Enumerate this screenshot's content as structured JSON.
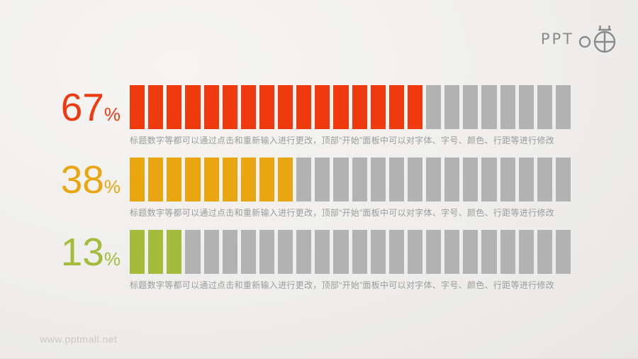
{
  "logo": {
    "text": "PPT",
    "icon": "bomb-crosshair-icon",
    "color": "#8a8a8a"
  },
  "watermark": {
    "text": "www.pptmall.net",
    "color": "#c8c7c5"
  },
  "chart_data": {
    "type": "bar",
    "subtype": "segmented-horizontal-progress",
    "segments_per_row": 24,
    "empty_color": "#b2b2b2",
    "percent_symbol": "%",
    "rows": [
      {
        "value": "67",
        "value_percent": 67,
        "filled_segments": 16,
        "color": "#ee3a0e",
        "caption": "标题数字等都可以通过点击和重新输入进行更改，顶部“开始”面板中可以对字体、字号、颜色、行距等进行修改"
      },
      {
        "value": "38",
        "value_percent": 38,
        "filled_segments": 9,
        "color": "#e9a611",
        "caption": "标题数字等都可以通过点击和重新输入进行更改，顶部“开始”面板中可以对字体、字号、颜色、行距等进行修改"
      },
      {
        "value": "13",
        "value_percent": 13,
        "filled_segments": 3,
        "color": "#a4bb3b",
        "caption": "标题数字等都可以通过点击和重新输入进行更改，顶部“开始”面板中可以对字体、字号、颜色、行距等进行修改"
      }
    ]
  }
}
